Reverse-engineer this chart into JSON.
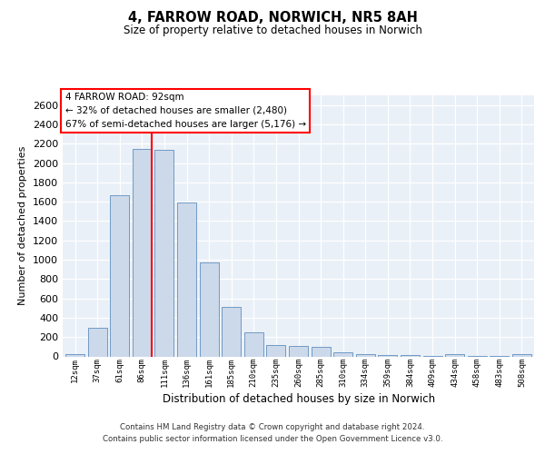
{
  "title": "4, FARROW ROAD, NORWICH, NR5 8AH",
  "subtitle": "Size of property relative to detached houses in Norwich",
  "xlabel": "Distribution of detached houses by size in Norwich",
  "ylabel": "Number of detached properties",
  "bar_color": "#ccd9ea",
  "bar_edge_color": "#5f8fbf",
  "categories": [
    "12sqm",
    "37sqm",
    "61sqm",
    "86sqm",
    "111sqm",
    "136sqm",
    "161sqm",
    "185sqm",
    "210sqm",
    "235sqm",
    "260sqm",
    "285sqm",
    "310sqm",
    "334sqm",
    "359sqm",
    "384sqm",
    "409sqm",
    "434sqm",
    "458sqm",
    "483sqm",
    "508sqm"
  ],
  "values": [
    20,
    300,
    1670,
    2150,
    2140,
    1595,
    970,
    510,
    245,
    120,
    110,
    95,
    40,
    20,
    15,
    10,
    5,
    20,
    5,
    5,
    20
  ],
  "ylim": [
    0,
    2700
  ],
  "yticks": [
    0,
    200,
    400,
    600,
    800,
    1000,
    1200,
    1400,
    1600,
    1800,
    2000,
    2200,
    2400,
    2600
  ],
  "red_line_x": 3.42,
  "annotation_line1": "4 FARROW ROAD: 92sqm",
  "annotation_line2": "← 32% of detached houses are smaller (2,480)",
  "annotation_line3": "67% of semi-detached houses are larger (5,176) →",
  "footer1": "Contains HM Land Registry data © Crown copyright and database right 2024.",
  "footer2": "Contains public sector information licensed under the Open Government Licence v3.0.",
  "bg_color": "#eaf0f8",
  "grid_color": "#ffffff",
  "fig_width": 6.0,
  "fig_height": 5.0,
  "dpi": 100
}
